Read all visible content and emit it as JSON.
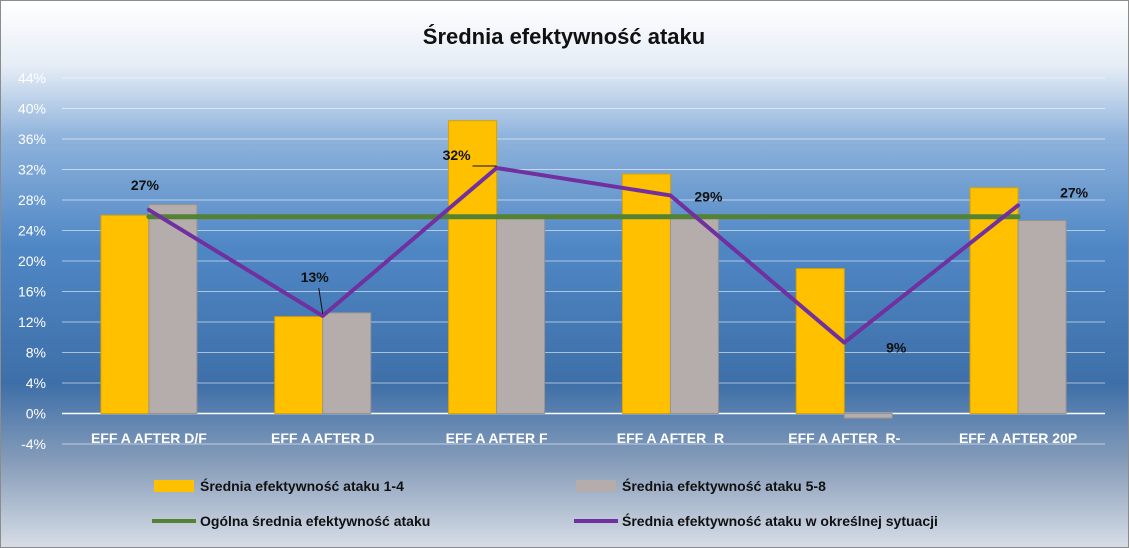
{
  "chart_data": {
    "type": "bar",
    "title": "Średnia efektywność ataku",
    "categories": [
      "EFF A AFTER D/F",
      "EFF A AFTER D",
      "EFF A AFTER F",
      "EFF A AFTER  R",
      "EFF A AFTER  R-",
      "EFF A AFTER 20P"
    ],
    "ylim": [
      -4,
      44
    ],
    "yticks": [
      -4,
      0,
      4,
      8,
      12,
      16,
      20,
      24,
      28,
      32,
      36,
      40,
      44
    ],
    "y_format": "percent",
    "grid": true,
    "legend_position": "bottom",
    "series": [
      {
        "name": "Średnia efektywność ataku 1-4",
        "type": "bar",
        "color": "#ffc000",
        "values": [
          26,
          12.7,
          38.4,
          31.4,
          19,
          29.6
        ]
      },
      {
        "name": "Średnia efektywność ataku 5-8",
        "type": "bar",
        "color": "#b5adab",
        "values": [
          27.4,
          13.2,
          25.8,
          25.8,
          -0.6,
          25.3
        ]
      },
      {
        "name": "Ogólna średnia efektywność ataku",
        "type": "line",
        "color": "#548235",
        "values": [
          25.8,
          25.8,
          25.8,
          25.8,
          25.8,
          25.8
        ]
      },
      {
        "name": "Średnia efektywność ataku w określnej sytuacji",
        "type": "line",
        "color": "#7030a0",
        "values": [
          26.7,
          12.8,
          32.2,
          28.6,
          9.3,
          27.3
        ],
        "data_labels": [
          "27%",
          "13%",
          "32%",
          "29%",
          "9%",
          "27%"
        ]
      }
    ]
  }
}
